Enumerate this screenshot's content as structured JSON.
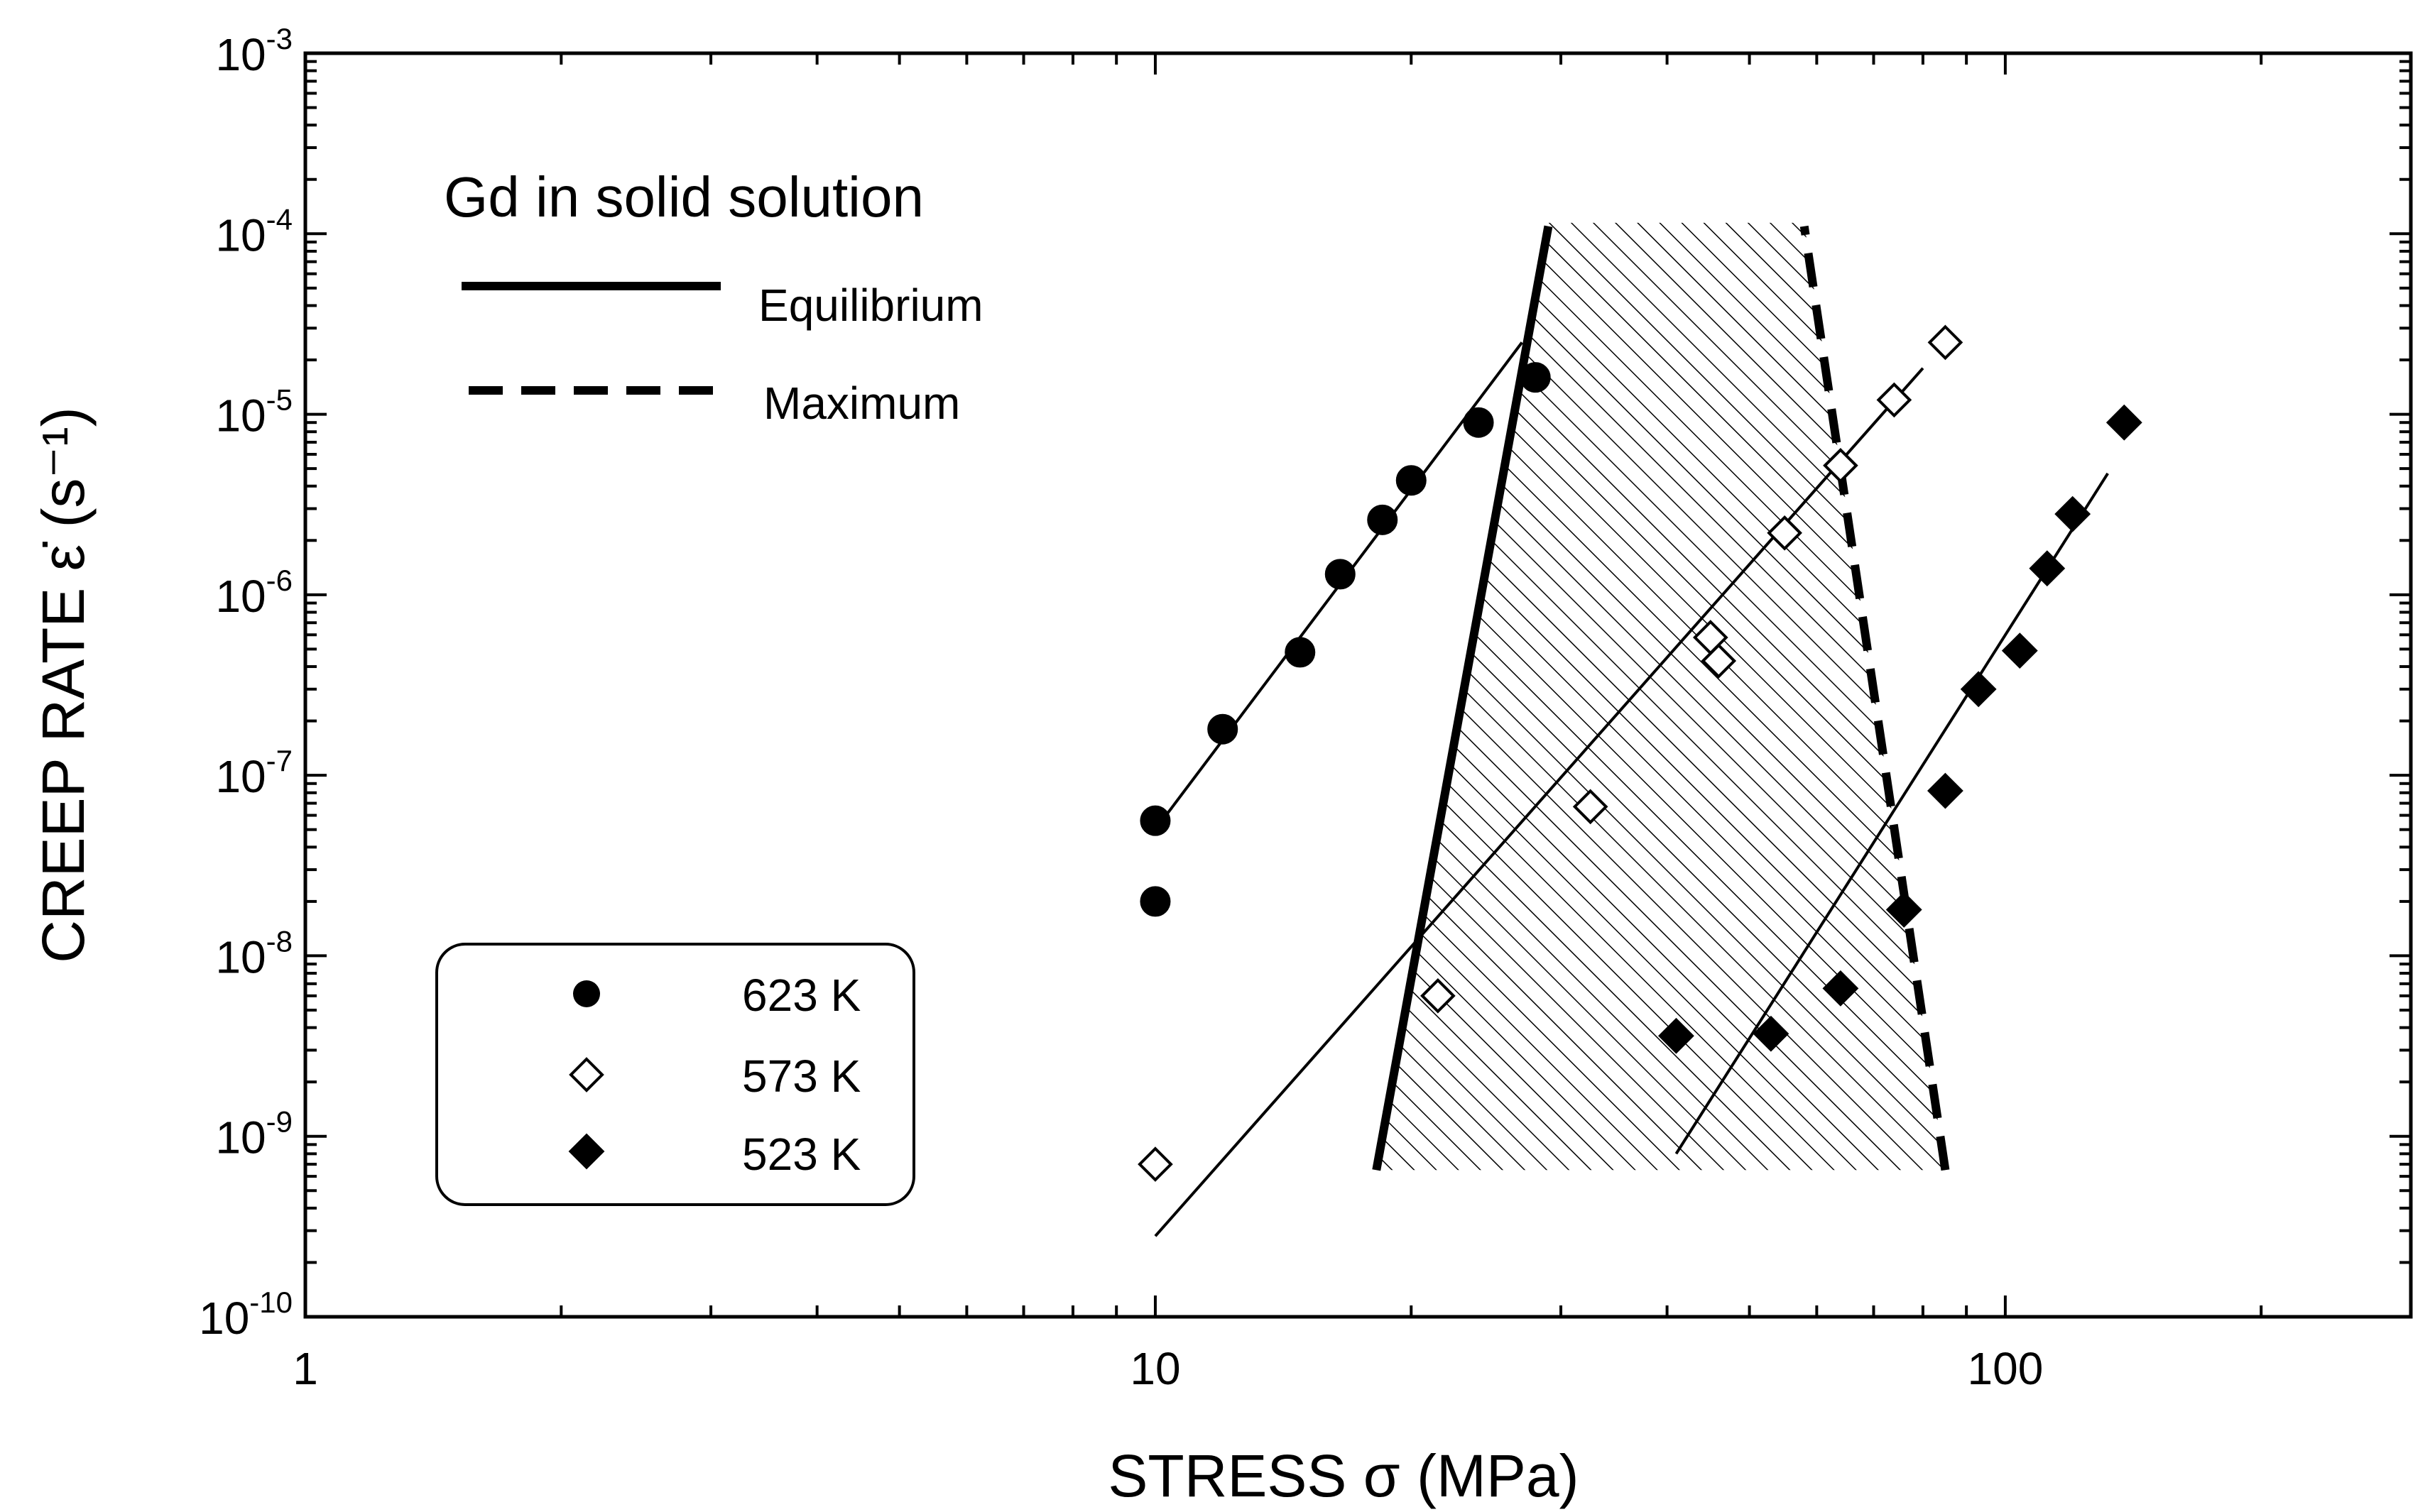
{
  "chart_data": {
    "type": "scatter",
    "xscale": "log",
    "yscale": "log",
    "xlim": [
      1,
      300
    ],
    "ylim": [
      1e-10,
      0.001
    ],
    "xlabel": "STRESS  σ (MPa)",
    "ylabel": "CREEP RATE  ε̇  (s⁻¹)",
    "x_ticks": [
      {
        "value": 1,
        "label": "1"
      },
      {
        "value": 10,
        "label": "10"
      },
      {
        "value": 100,
        "label": "100"
      }
    ],
    "y_ticks": [
      {
        "value": 1e-10,
        "base": "10",
        "exp": "-10"
      },
      {
        "value": 1e-09,
        "base": "10",
        "exp": "-9"
      },
      {
        "value": 1e-08,
        "base": "10",
        "exp": "-8"
      },
      {
        "value": 1e-07,
        "base": "10",
        "exp": "-7"
      },
      {
        "value": 1e-06,
        "base": "10",
        "exp": "-6"
      },
      {
        "value": 1e-05,
        "base": "10",
        "exp": "-5"
      },
      {
        "value": 0.0001,
        "base": "10",
        "exp": "-4"
      },
      {
        "value": 0.001,
        "base": "10",
        "exp": "-3"
      }
    ],
    "series": [
      {
        "name": "623 K",
        "marker": "circle",
        "filled": true,
        "points": [
          [
            10,
            5.6e-08
          ],
          [
            10,
            2e-08
          ],
          [
            12,
            1.8e-07
          ],
          [
            14.8,
            4.8e-07
          ],
          [
            16.5,
            1.3e-06
          ],
          [
            18.5,
            2.6e-06
          ],
          [
            20,
            4.3e-06
          ],
          [
            24,
            9e-06
          ],
          [
            28,
            1.6e-05
          ]
        ],
        "fit": [
          [
            10,
            5e-08
          ],
          [
            27,
            2.5e-05
          ]
        ]
      },
      {
        "name": "573 K",
        "marker": "diamond",
        "filled": false,
        "points": [
          [
            10,
            7e-10
          ],
          [
            21.5,
            6e-09
          ],
          [
            32.5,
            6.7e-08
          ],
          [
            45,
            5.8e-07
          ],
          [
            46,
            4.3e-07
          ],
          [
            55,
            2.2e-06
          ],
          [
            64,
            5.2e-06
          ],
          [
            74,
            1.2e-05
          ],
          [
            85,
            2.5e-05
          ]
        ],
        "fit": [
          [
            10,
            2.8e-10
          ],
          [
            80,
            1.8e-05
          ]
        ]
      },
      {
        "name": "523 K",
        "marker": "diamond",
        "filled": true,
        "points": [
          [
            41,
            3.6e-09
          ],
          [
            53,
            3.7e-09
          ],
          [
            64,
            6.6e-09
          ],
          [
            76,
            1.8e-08
          ],
          [
            85,
            8.2e-08
          ],
          [
            93,
            3e-07
          ],
          [
            104,
            4.9e-07
          ],
          [
            112,
            1.4e-06
          ],
          [
            120,
            2.8e-06
          ],
          [
            138,
            9e-06
          ]
        ],
        "fit": [
          [
            41,
            8e-10
          ],
          [
            132,
            4.7e-06
          ]
        ]
      }
    ],
    "boundary_lines": [
      {
        "name": "Equilibrium",
        "style": "solid",
        "points": [
          [
            18.2,
            6.5e-10
          ],
          [
            29,
            0.00011
          ]
        ]
      },
      {
        "name": "Maximum",
        "style": "dashed",
        "points": [
          [
            85,
            6.5e-10
          ],
          [
            58,
            0.00011
          ]
        ]
      }
    ],
    "shaded_region": {
      "pattern": "hatched",
      "bottom": 6.5e-10,
      "top": 0.000115,
      "polygon": [
        [
          18.2,
          6.5e-10
        ],
        [
          29,
          0.000115
        ],
        [
          58,
          0.000115
        ],
        [
          85,
          6.5e-10
        ]
      ]
    },
    "annotation_title": "Gd in solid solution",
    "line_legend": [
      {
        "label": "Equilibrium",
        "style": "solid"
      },
      {
        "label": "Maximum",
        "style": "dashed"
      }
    ],
    "marker_legend": [
      {
        "label": "623 K",
        "marker": "circle",
        "filled": true
      },
      {
        "label": "573 K",
        "marker": "diamond",
        "filled": false
      },
      {
        "label": "523 K",
        "marker": "diamond",
        "filled": true
      }
    ],
    "legend_position": "bottom-left",
    "grid": false
  }
}
